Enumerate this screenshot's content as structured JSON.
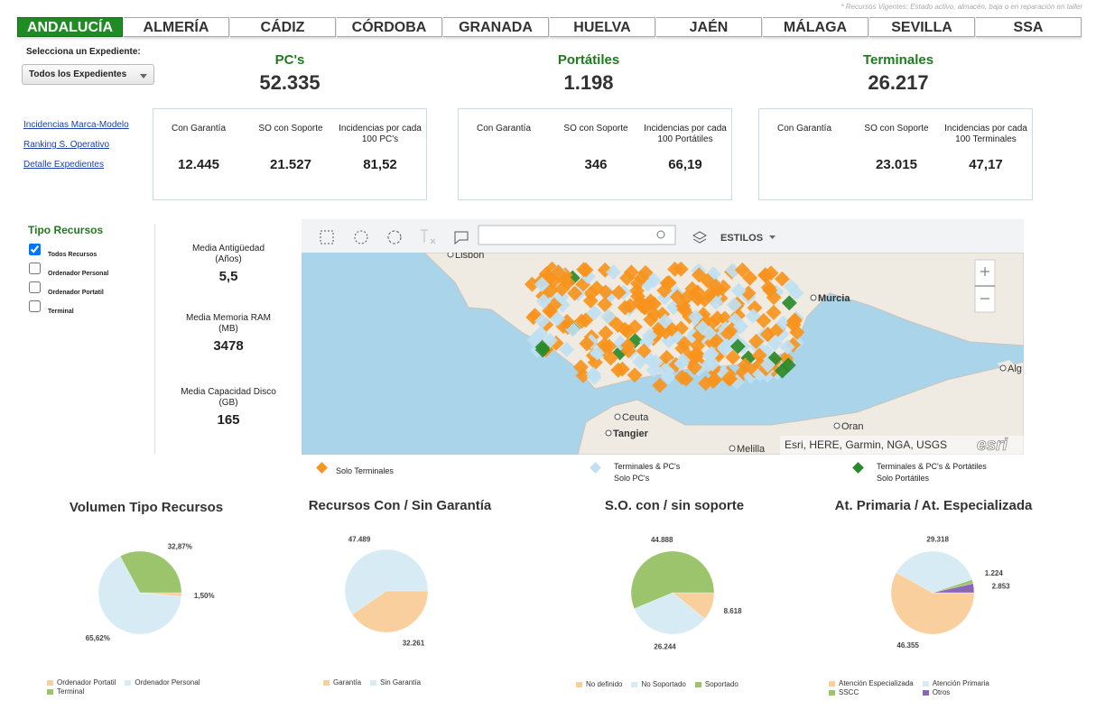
{
  "note": "* Recursos Vigentes: Estado activo, almacén, baja o en reparación en taller",
  "tabs": {
    "items": [
      "ANDALUCÍA",
      "ALMERÍA",
      "CÁDIZ",
      "CÓRDOBA",
      "GRANADA",
      "HUELVA",
      "JAÉN",
      "MÁLAGA",
      "SEVILLA",
      "SSA"
    ],
    "active": 0
  },
  "selector": {
    "label": "Selecciona un Expediente:",
    "value": "Todos los Expedientes"
  },
  "kpis": [
    {
      "title": "PC's",
      "total": "52.335",
      "stats": [
        {
          "label": "Con Garantía",
          "value": "12.445"
        },
        {
          "label": "SO con Soporte",
          "value": "21.527"
        },
        {
          "label": "Incidencias por cada 100 PC's",
          "value": "81,52"
        }
      ]
    },
    {
      "title": "Portátiles",
      "total": "1.198",
      "stats": [
        {
          "label": "Con Garantía"
        },
        {
          "label": "SO con Soporte",
          "value": "346"
        },
        {
          "label": "Incidencias por cada 100 Portátiles",
          "value": "66,19"
        }
      ]
    },
    {
      "title": "Terminales",
      "total": "26.217",
      "stats": [
        {
          "label": "Con Garantía"
        },
        {
          "label": "SO con Soporte",
          "value": "23.015"
        },
        {
          "label": "Incidencias por cada 100 Terminales",
          "value": "47,17"
        }
      ]
    }
  ],
  "links": [
    "Incidencias Marca-Modelo",
    "Ranking S. Operativo",
    "Detalle Expedientes"
  ],
  "resource_filter": {
    "title": "Tipo Recursos",
    "options": [
      {
        "label": "Todos Recursos",
        "checked": true
      },
      {
        "label": "Ordenador Personal",
        "checked": false
      },
      {
        "label": "Ordenador Portatil",
        "checked": false
      },
      {
        "label": "Terminal",
        "checked": false
      }
    ]
  },
  "averages": [
    {
      "label": "Media Antigüedad (Años)",
      "value": "5,5"
    },
    {
      "label": "Media Memoria RAM (MB)",
      "value": "3478"
    },
    {
      "label": "Media Capacidad Disco (GB)",
      "value": "165"
    }
  ],
  "map": {
    "toolbar_label": "ESTILOS",
    "places": [
      "Lisbon",
      "Murcia",
      "Alg",
      "Ceuta",
      "Tangier",
      "Oran",
      "Melilla"
    ],
    "attribution": "Esri, HERE, Garmin, NGA, USGS",
    "logo": "esri"
  },
  "map_legend": [
    {
      "label": "Solo Terminales",
      "color": "#f7941d"
    },
    {
      "label": "Terminales & PC's",
      "sublabel": "Solo PC's",
      "color": "#bfe0f2"
    },
    {
      "label": "Terminales & PC's & Portátiles",
      "sublabel": "Solo Portátiles",
      "color": "#2a8a2a"
    }
  ],
  "chart_data": [
    {
      "type": "pie",
      "title": "Volumen Tipo Recursos",
      "categories": [
        "Ordenador Portatil",
        "Ordenador Personal",
        "Terminal"
      ],
      "values": [
        1.5,
        65.62,
        32.87
      ],
      "value_labels": [
        "1,50%",
        "65,62%",
        "32,87%"
      ],
      "colors": [
        "#f9cf9e",
        "#d6ebf4",
        "#9cc46c"
      ],
      "legend": "bottom"
    },
    {
      "type": "pie",
      "title": "Recursos Con / Sin Garantía",
      "categories": [
        "Garantía",
        "Sin Garantía"
      ],
      "values": [
        32261,
        47489
      ],
      "value_labels": [
        "32.261",
        "47.489"
      ],
      "colors": [
        "#f9cf9e",
        "#d6ebf4"
      ],
      "legend": "bottom"
    },
    {
      "type": "pie",
      "title": "S.O. con / sin soporte",
      "categories": [
        "No definido",
        "No Soportado",
        "Soportado"
      ],
      "values": [
        8618,
        26244,
        44888
      ],
      "value_labels": [
        "8.618",
        "26.244",
        "44.888"
      ],
      "colors": [
        "#f9cf9e",
        "#d6ebf4",
        "#9cc46c"
      ],
      "legend": "bottom"
    },
    {
      "type": "pie",
      "title": "At. Primaria / At. Especializada",
      "categories": [
        "Atención Especializada",
        "Atención Primaria",
        "SSCC",
        "Otros"
      ],
      "values": [
        46355,
        29318,
        1224,
        2853
      ],
      "value_labels": [
        "46.355",
        "29.318",
        "1.224",
        "2.853"
      ],
      "colors": [
        "#f9cf9e",
        "#d6ebf4",
        "#9cc46c",
        "#8a67b2"
      ],
      "legend": "bottom"
    }
  ]
}
